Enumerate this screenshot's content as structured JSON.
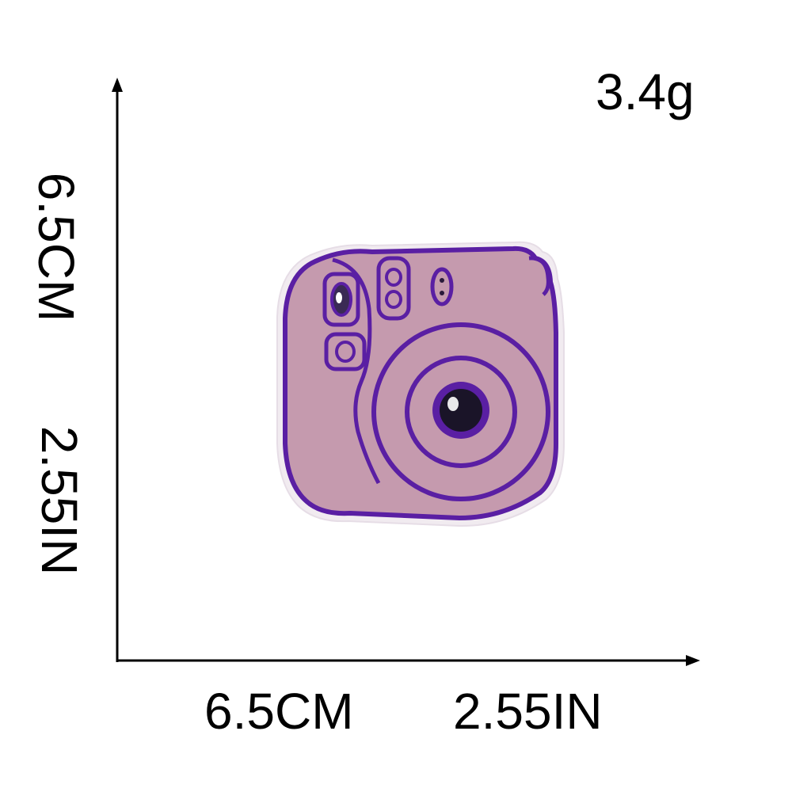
{
  "weight": "3.4g",
  "height_dimension": {
    "metric": "6.5CM",
    "imperial": "2.55IN"
  },
  "width_dimension": {
    "metric": "6.5CM",
    "imperial": "2.55IN"
  },
  "colors": {
    "patch_fill": "#c59aae",
    "outline": "#5a1fa3",
    "border": "#f1ebf0",
    "axis": "#000000",
    "lens_center": "#1a1428"
  },
  "product_image": "instant-camera-embroidered-patch"
}
